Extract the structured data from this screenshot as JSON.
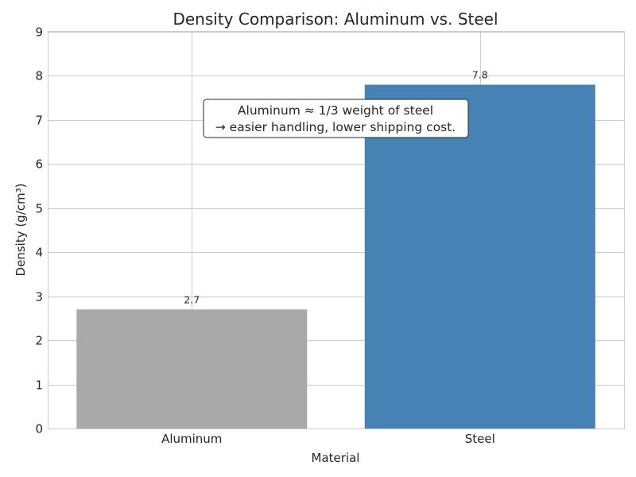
{
  "chart_data": {
    "type": "bar",
    "title": "Density Comparison: Aluminum vs. Steel",
    "xlabel": "Material",
    "ylabel": "Density (g/cm³)",
    "categories": [
      "Aluminum",
      "Steel"
    ],
    "values": [
      2.7,
      7.8
    ],
    "data_labels": [
      "2.7",
      "7.8"
    ],
    "colors": [
      "#a9a9a9",
      "#4682b4"
    ],
    "ylim": [
      0,
      9
    ],
    "yticks": [
      "0",
      "1",
      "2",
      "3",
      "4",
      "5",
      "6",
      "7",
      "8",
      "9"
    ],
    "grid": true,
    "annotation": {
      "line1": "Aluminum ≈ 1/3 weight of steel",
      "line2": "→ easier handling, lower shipping cost."
    }
  }
}
